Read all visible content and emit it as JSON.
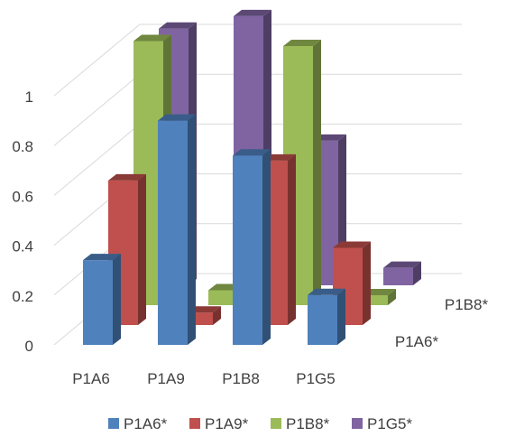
{
  "chart_data": {
    "type": "bar",
    "subtype": "3d-column",
    "title": "",
    "xlabel": "",
    "ylabel": "",
    "categories": [
      "P1A6",
      "P1A9",
      "P1B8",
      "P1G5"
    ],
    "depth_labels": [
      "P1A6*",
      "P1B8*"
    ],
    "ylim": [
      0,
      1
    ],
    "yticks": [
      "0",
      "0.2",
      "0.4",
      "0.6",
      "0.8",
      "1"
    ],
    "grid": true,
    "legend_position": "bottom",
    "series": [
      {
        "name": "P1A6*",
        "color": "#4F81BD",
        "values": [
          0.34,
          0.9,
          0.76,
          0.2
        ]
      },
      {
        "name": "P1A9*",
        "color": "#C0504D",
        "values": [
          0.58,
          0.05,
          0.66,
          0.31
        ]
      },
      {
        "name": "P1B8*",
        "color": "#9BBB59",
        "values": [
          1.06,
          0.06,
          1.04,
          0.04
        ]
      },
      {
        "name": "P1G5*",
        "color": "#8064A2",
        "values": [
          1.03,
          1.08,
          0.58,
          0.07
        ]
      }
    ]
  }
}
